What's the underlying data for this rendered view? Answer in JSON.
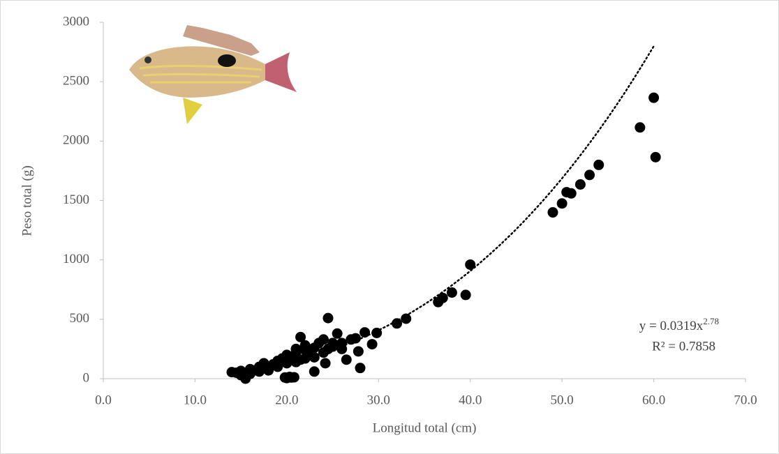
{
  "chart_data": {
    "type": "scatter",
    "x_label": "Longitud total (cm)",
    "y_label": "Peso total (g)",
    "color": "#000000",
    "x": [
      60,
      58.5,
      60.2,
      54,
      53,
      52,
      51,
      50.5,
      50,
      49,
      40,
      39.5,
      38,
      37,
      36.5,
      33,
      32,
      29.8,
      29.3,
      28.5,
      28,
      27.8,
      27.5,
      26.5,
      26,
      25.5,
      24.5,
      23,
      24,
      22,
      21.5,
      21,
      20.5,
      20,
      19.8,
      15.5,
      14,
      14.5,
      15,
      16,
      16.5,
      17,
      17.5,
      18,
      18.5,
      19,
      19.5,
      20,
      20.5,
      21,
      21.5,
      22,
      22.5,
      23,
      23.5,
      24.5,
      25,
      19,
      20,
      21,
      22,
      23,
      24,
      25,
      26,
      27,
      18,
      17,
      16,
      15,
      20.3,
      20.8,
      24.2
    ],
    "y": [
      2365,
      2115,
      1865,
      1800,
      1715,
      1635,
      1560,
      1570,
      1475,
      1400,
      960,
      705,
      725,
      680,
      645,
      505,
      465,
      385,
      290,
      390,
      90,
      230,
      340,
      160,
      300,
      380,
      510,
      60,
      330,
      280,
      350,
      250,
      10,
      5,
      10,
      0,
      55,
      50,
      65,
      80,
      70,
      100,
      130,
      90,
      120,
      150,
      170,
      200,
      180,
      220,
      160,
      240,
      200,
      260,
      300,
      250,
      270,
      100,
      130,
      140,
      170,
      180,
      220,
      300,
      250,
      330,
      70,
      60,
      40,
      30,
      15,
      12,
      130
    ],
    "trendline": {
      "a": 0.0319,
      "b": 2.78,
      "xrange": [
        14,
        60
      ],
      "label": "y = 0.0319x",
      "exponent_label": "2.78",
      "r2_label": "R² = 0.7858"
    },
    "xlim": [
      0,
      70
    ],
    "ylim": [
      0,
      3000
    ],
    "xticks": [
      {
        "value": 0,
        "label": "0.0"
      },
      {
        "value": 10,
        "label": "10.0"
      },
      {
        "value": 20,
        "label": "20.0"
      },
      {
        "value": 30,
        "label": "30.0"
      },
      {
        "value": 40,
        "label": "40.0"
      },
      {
        "value": 50,
        "label": "50.0"
      },
      {
        "value": 60,
        "label": "60.0"
      },
      {
        "value": 70,
        "label": "70.0"
      }
    ],
    "yticks": [
      0,
      500,
      1000,
      1500,
      2000,
      2500,
      3000
    ]
  }
}
